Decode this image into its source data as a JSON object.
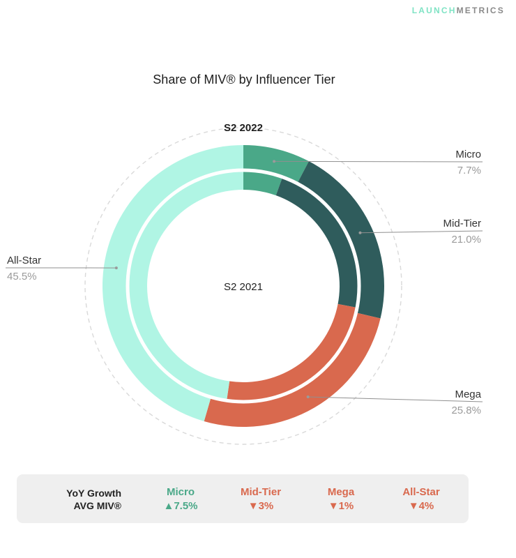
{
  "brand": {
    "part1": "LAUNCH",
    "part2": "METRICS"
  },
  "title": "Share of MIV® by Influencer Tier",
  "chart_data": {
    "type": "donut",
    "outer_label": "S2 2022",
    "inner_label": "S2 2021",
    "series": [
      {
        "name": "S2 2022",
        "values": [
          7.7,
          21.0,
          25.8,
          45.5
        ]
      },
      {
        "name": "S2 2021",
        "values": [
          5.5,
          22.5,
          24.3,
          47.7
        ]
      }
    ],
    "categories": [
      "Micro",
      "Mid-Tier",
      "Mega",
      "All-Star"
    ],
    "labels": [
      {
        "name": "Micro",
        "pct": "7.7%"
      },
      {
        "name": "Mid-Tier",
        "pct": "21.0%"
      },
      {
        "name": "Mega",
        "pct": "25.8%"
      },
      {
        "name": "All-Star",
        "pct": "45.5%"
      }
    ],
    "colors": [
      "#4aa888",
      "#2f5c5c",
      "#d9694e",
      "#b0f5e4"
    ]
  },
  "legend": {
    "title_line1": "YoY Growth",
    "title_line2": "AVG MIV®",
    "items": [
      {
        "cat": "Micro",
        "arrow": "▲",
        "val": "7.5%",
        "color": "#4aa888"
      },
      {
        "cat": "Mid-Tier",
        "arrow": "▼",
        "val": "3%",
        "color": "#d9694e"
      },
      {
        "cat": "Mega",
        "arrow": "▼",
        "val": "1%",
        "color": "#d9694e"
      },
      {
        "cat": "All-Star",
        "arrow": "▼",
        "val": "4%",
        "color": "#d9694e"
      }
    ]
  }
}
